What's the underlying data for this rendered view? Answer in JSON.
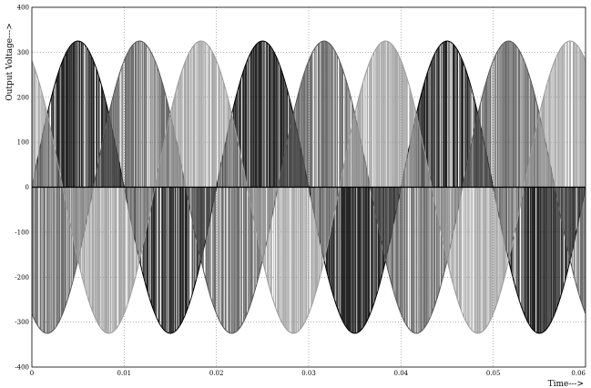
{
  "chart_data": {
    "type": "line",
    "title": "",
    "xlabel": "Time--->",
    "ylabel": "Output Voltage--->",
    "xlim": [
      0,
      0.06
    ],
    "ylim": [
      -400,
      400
    ],
    "x_ticks": [
      0,
      0.01,
      0.02,
      0.03,
      0.04,
      0.05,
      0.06
    ],
    "x_tick_labels": [
      "0",
      "0.01",
      "0.02",
      "0.03",
      "0.04",
      "0.05",
      "0.06"
    ],
    "y_ticks": [
      -400,
      -300,
      -200,
      -100,
      0,
      100,
      200,
      300,
      400
    ],
    "y_tick_labels": [
      "-400",
      "-300",
      "-200",
      "-100",
      "0",
      "100",
      "200",
      "300",
      "400"
    ],
    "grid": true,
    "grid_style": "dotted",
    "amplitude": 325,
    "frequency_hz": 50,
    "phase_shift_deg": [
      0,
      -120,
      120
    ],
    "series_colors": [
      "#000000",
      "#555555",
      "#9a9a9a"
    ]
  }
}
